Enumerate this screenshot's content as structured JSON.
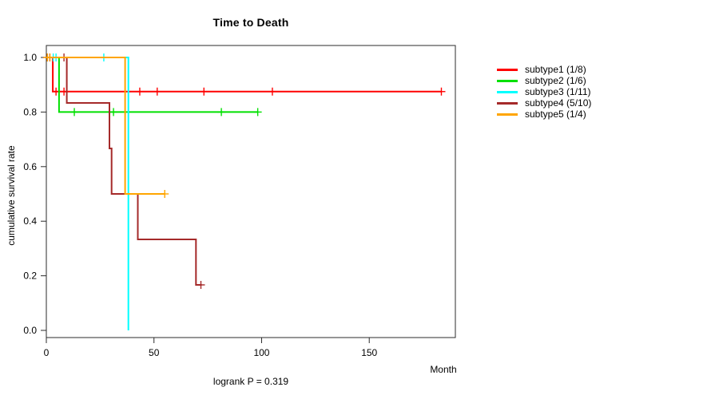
{
  "title": "Time to Death",
  "xlabel": "Month",
  "ylabel": "cumulative survival rate",
  "footnote": "logrank P = 0.319",
  "chart_data": {
    "type": "line",
    "subtype": "kaplan-meier-step-curves",
    "title": "Time to Death",
    "xlabel": "Month",
    "ylabel": "cumulative survival rate",
    "annotation": "logrank P = 0.319",
    "xlim": [
      0,
      190
    ],
    "ylim": [
      0.0,
      1.0
    ],
    "x_ticks": [
      0,
      50,
      100,
      150
    ],
    "y_ticks": [
      "0.0",
      "0.2",
      "0.4",
      "0.6",
      "0.8",
      "1.0"
    ],
    "grid": false,
    "legend_position": "right-outside",
    "axis_color": "#2b2b2b",
    "series": [
      {
        "label": "subtype1 (1/8)",
        "color": "#ff0000",
        "steps": [
          [
            0,
            1.0
          ],
          [
            3,
            1.0
          ],
          [
            3,
            0.875
          ],
          [
            183.5,
            0.875
          ]
        ],
        "censors": [
          [
            4.5,
            0.875
          ],
          [
            8.2,
            0.875
          ],
          [
            43.4,
            0.875
          ],
          [
            51.5,
            0.875
          ],
          [
            73.2,
            0.875
          ],
          [
            105,
            0.875
          ],
          [
            183.5,
            0.875
          ]
        ]
      },
      {
        "label": "subtype2 (1/6)",
        "color": "#00e000",
        "steps": [
          [
            0,
            1.0
          ],
          [
            5.9,
            1.0
          ],
          [
            5.9,
            0.8
          ],
          [
            98.2,
            0.8
          ]
        ],
        "censors": [
          [
            13,
            0.8
          ],
          [
            31.2,
            0.8
          ],
          [
            81.3,
            0.8
          ],
          [
            98.2,
            0.8
          ]
        ]
      },
      {
        "label": "subtype3 (1/11)",
        "color": "#00ffff",
        "steps": [
          [
            0,
            1.0
          ],
          [
            38.1,
            1.0
          ],
          [
            38.1,
            0.0
          ]
        ],
        "censors": [
          [
            3.2,
            1.0
          ],
          [
            4.5,
            1.0
          ],
          [
            26.7,
            1.0
          ]
        ]
      },
      {
        "label": "subtype4 (5/10)",
        "color": "#a52a2a",
        "steps": [
          [
            0,
            1.0
          ],
          [
            9.5,
            1.0
          ],
          [
            9.5,
            0.8333
          ],
          [
            29.3,
            0.8333
          ],
          [
            29.3,
            0.6667
          ],
          [
            30.3,
            0.6667
          ],
          [
            30.3,
            0.5
          ],
          [
            42.5,
            0.5
          ],
          [
            42.5,
            0.3333
          ],
          [
            69.5,
            0.3333
          ],
          [
            69.5,
            0.1667
          ],
          [
            72.2,
            0.1667
          ]
        ],
        "censors": [
          [
            0.4,
            1.0
          ],
          [
            1.6,
            1.0
          ],
          [
            8.2,
            1.0
          ],
          [
            71.8,
            0.1667
          ]
        ]
      },
      {
        "label": "subtype5 (1/4)",
        "color": "#ffa500",
        "steps": [
          [
            0,
            1.0
          ],
          [
            36.6,
            1.0
          ],
          [
            36.6,
            0.5
          ],
          [
            55.2,
            0.5
          ]
        ],
        "censors": [
          [
            0.5,
            1.0
          ],
          [
            1.7,
            1.0
          ],
          [
            55,
            0.5
          ]
        ]
      }
    ]
  }
}
